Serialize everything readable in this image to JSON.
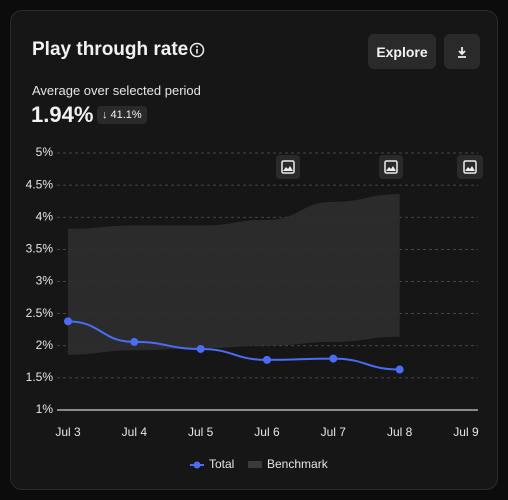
{
  "header": {
    "title": "Play through rate",
    "explore": "Explore"
  },
  "summary": {
    "label": "Average over selected period",
    "value": "1.94%",
    "change": "41.1%"
  },
  "chart_data": {
    "type": "line",
    "categories": [
      "Jul 3",
      "Jul 4",
      "Jul 5",
      "Jul 6",
      "Jul 7",
      "Jul 8",
      "Jul 9"
    ],
    "series": [
      {
        "name": "Total",
        "color": "#4a6cf7",
        "values": [
          2.38,
          2.06,
          1.95,
          1.78,
          1.8,
          1.63,
          null
        ]
      },
      {
        "name": "Benchmark",
        "color": "#2e2e2e",
        "upper": [
          3.82,
          3.87,
          3.87,
          3.96,
          4.24,
          4.36,
          null
        ],
        "lower": [
          1.86,
          1.93,
          1.96,
          2.0,
          2.06,
          2.14,
          null
        ]
      }
    ],
    "ylim": [
      1,
      5
    ],
    "yticks": [
      {
        "value": 1,
        "label": "1%"
      },
      {
        "value": 1.5,
        "label": "1.5%"
      },
      {
        "value": 2,
        "label": "2%"
      },
      {
        "value": 2.5,
        "label": "2.5%"
      },
      {
        "value": 3,
        "label": "3%"
      },
      {
        "value": 3.5,
        "label": "3.5%"
      },
      {
        "value": 4,
        "label": "4%"
      },
      {
        "value": 4.5,
        "label": "4.5%"
      },
      {
        "value": 5,
        "label": "5%"
      }
    ],
    "grid": true
  }
}
